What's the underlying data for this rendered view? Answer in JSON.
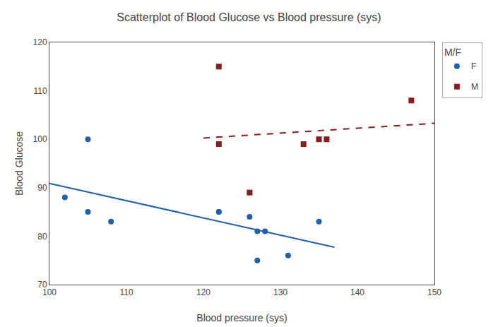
{
  "chart_data": {
    "type": "scatter",
    "title": "Scatterplot of Blood Glucose vs Blood pressure (sys)",
    "x_label": "Blood pressure (sys)",
    "y_label": "Blood Glucose",
    "xlim": [
      100,
      150
    ],
    "ylim": [
      70,
      120
    ],
    "xticks": [
      100,
      110,
      120,
      130,
      140,
      150
    ],
    "yticks": [
      70,
      80,
      90,
      100,
      110,
      120
    ],
    "grid": false,
    "legend": "right",
    "legend_title": "M/F",
    "series": [
      {
        "name": "F",
        "type": "scatter",
        "marker": "circle",
        "color": "#1f5fad",
        "x": [
          102,
          105,
          105,
          108,
          122,
          122,
          126,
          127,
          127,
          128,
          131,
          135
        ],
        "values": [
          88,
          100,
          85,
          83,
          85,
          85,
          84,
          81,
          75,
          81,
          76,
          83
        ]
      },
      {
        "name": "M",
        "type": "scatter",
        "marker": "square",
        "color": "#8b1a1a",
        "x": [
          122,
          122,
          126,
          133,
          135,
          136,
          147
        ],
        "values": [
          115,
          99,
          89,
          99,
          100,
          100,
          108
        ]
      },
      {
        "name": "F",
        "type": "line",
        "line_style": "solid",
        "color": "#1f5fad",
        "x": [
          100,
          137
        ],
        "values": [
          90.882286,
          77.732139
        ]
      },
      {
        "name": "M",
        "type": "line",
        "line_style": "dashed",
        "color": "#8b1a1a",
        "x": [
          120,
          150
        ],
        "values": [
          100.254412,
          103.298529
        ]
      }
    ]
  }
}
